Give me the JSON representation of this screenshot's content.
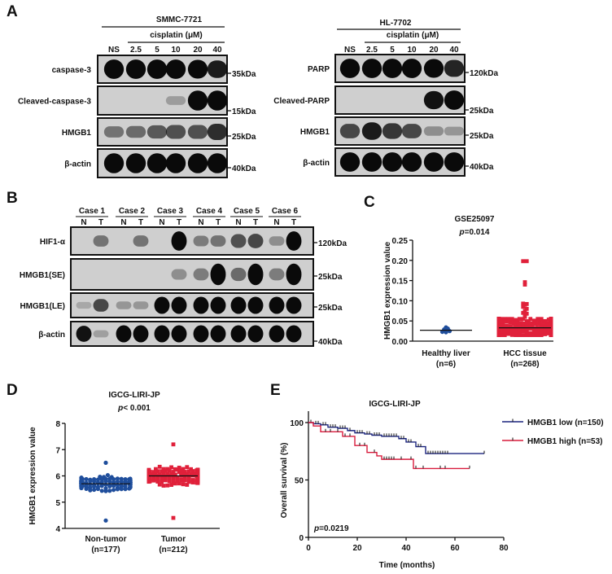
{
  "panels": {
    "A": {
      "label": "A",
      "left": {
        "cell_line": "SMMC-7721",
        "treatment": "cisplatin (μM)",
        "lanes": [
          "NS",
          "2.5",
          "5",
          "10",
          "20",
          "40"
        ],
        "rows": [
          {
            "name": "caspase-3",
            "marker": "35kDa",
            "bands": [
              1,
              1,
              1,
              1,
              0.95,
              0.85
            ]
          },
          {
            "name": "Cleaved-caspase-3",
            "marker": "15kDa",
            "bands": [
              0,
              0,
              0,
              0.12,
              1,
              1
            ]
          },
          {
            "name": "HMGB1",
            "marker": "25kDa",
            "bands": [
              0.35,
              0.4,
              0.5,
              0.55,
              0.55,
              0.75
            ]
          },
          {
            "name": "β-actin",
            "marker": "40kDa",
            "bands": [
              1,
              1,
              1,
              1,
              1,
              1
            ]
          }
        ]
      },
      "right": {
        "cell_line": "HL-7702",
        "treatment": "cisplatin (μM)",
        "lanes": [
          "NS",
          "2.5",
          "5",
          "10",
          "20",
          "40"
        ],
        "rows": [
          {
            "name": "PARP",
            "marker": "120kDa",
            "bands": [
              1,
              1,
              1,
              1,
              0.95,
              0.8
            ]
          },
          {
            "name": "Cleaved-PARP",
            "marker": "25kDa",
            "bands": [
              0,
              0,
              0,
              0,
              0.9,
              1
            ]
          },
          {
            "name": "HMGB1",
            "marker": "25kDa",
            "bands": [
              0.6,
              0.85,
              0.7,
              0.6,
              0.2,
              0.15
            ]
          },
          {
            "name": "β-actin",
            "marker": "40kDa",
            "bands": [
              1,
              1,
              1,
              1,
              1,
              1
            ]
          }
        ]
      }
    },
    "B": {
      "label": "B",
      "cases": [
        "Case 1",
        "Case 2",
        "Case 3",
        "Case 4",
        "Case 5",
        "Case 6"
      ],
      "lane_types": [
        "N",
        "T"
      ],
      "rows": [
        {
          "name": "HIF1-α",
          "marker": "120kDa",
          "bands": [
            0,
            0.35,
            0,
            0.35,
            0,
            1,
            0.3,
            0.35,
            0.55,
            0.6,
            0.2,
            1
          ]
        },
        {
          "name": "HMGB1(SE)",
          "marker": "25kDa",
          "bands": [
            0,
            0,
            0,
            0,
            0,
            0.2,
            0.3,
            1,
            0.4,
            1,
            0.3,
            1
          ]
        },
        {
          "name": "HMGB1(LE)",
          "marker": "25kDa",
          "bands": [
            0.05,
            0.6,
            0.15,
            0.15,
            1,
            1,
            1,
            1,
            1,
            1,
            1,
            1
          ]
        },
        {
          "name": "β-actin",
          "marker": "40kDa",
          "bands": [
            0.9,
            0.1,
            1,
            1,
            1,
            1,
            1,
            1,
            1,
            1,
            1,
            1
          ]
        }
      ]
    },
    "C": {
      "label": "C",
      "chart_data": {
        "type": "scatter",
        "title": "GSE25097",
        "subtitle": "p=0.014",
        "subtitle_italic": "p",
        "subtitle_rest": "=0.014",
        "ylabel": "HMGB1 expression value",
        "ylim": [
          0,
          0.25
        ],
        "yticks": [
          "0.00",
          "0.05",
          "0.10",
          "0.15",
          "0.20",
          "0.25"
        ],
        "groups": [
          {
            "name": "Healthy liver",
            "n_label": "(n=6)",
            "color": "#1f4e9c",
            "marker": "circle",
            "n": 6,
            "mean": 0.027,
            "range": [
              0.022,
              0.034
            ],
            "values": [
              0.029,
              0.023,
              0.022,
              0.025,
              0.031,
              0.034
            ]
          },
          {
            "name": "HCC tissue",
            "n_label": "(n=268)",
            "color": "#e0203a",
            "marker": "square",
            "n": 268,
            "mean": 0.033,
            "range": [
              0.015,
              0.198
            ],
            "outliers": [
              0.198,
              0.146,
              0.14,
              0.093,
              0.092,
              0.09,
              0.085,
              0.08,
              0.075,
              0.07,
              0.068,
              0.065,
              0.06
            ]
          }
        ]
      }
    },
    "D": {
      "label": "D",
      "chart_data": {
        "type": "scatter",
        "title": "IGCG-LIRI-JP",
        "subtitle_italic": "p",
        "subtitle_rest": "< 0.001",
        "ylabel": "HMGB1 expression value",
        "ylim": [
          4,
          8
        ],
        "yticks": [
          "4",
          "5",
          "6",
          "7",
          "8"
        ],
        "groups": [
          {
            "name": "Non-tumor",
            "n_label": "(n=177)",
            "color": "#1f4e9c",
            "marker": "circle",
            "n": 177,
            "mean": 5.7,
            "range": [
              4.3,
              6.5
            ]
          },
          {
            "name": "Tumor",
            "n_label": "(n=212)",
            "color": "#e0203a",
            "marker": "square",
            "n": 212,
            "mean": 6.0,
            "range": [
              4.4,
              7.2
            ]
          }
        ]
      }
    },
    "E": {
      "label": "E",
      "chart_data": {
        "type": "line",
        "title": "IGCG-LIRI-JP",
        "xlabel": "Time (months)",
        "ylabel": "Overall survival (%)",
        "xlim": [
          0,
          80
        ],
        "ylim": [
          0,
          100
        ],
        "xticks": [
          "0",
          "20",
          "40",
          "60",
          "80"
        ],
        "yticks": [
          "0",
          "50",
          "100"
        ],
        "annotation_italic": "p",
        "annotation_rest": "=0.0219",
        "legend_position": "right",
        "series": [
          {
            "name": "HMGB1 low (n=150)",
            "color": "#1a237e",
            "steps": [
              [
                0,
                100
              ],
              [
                2,
                99
              ],
              [
                5,
                98
              ],
              [
                8,
                96
              ],
              [
                12,
                95
              ],
              [
                16,
                93
              ],
              [
                19,
                91
              ],
              [
                23,
                90
              ],
              [
                26,
                89
              ],
              [
                30,
                88
              ],
              [
                37,
                86
              ],
              [
                40,
                83
              ],
              [
                44,
                79
              ],
              [
                48,
                73
              ],
              [
                72,
                73
              ]
            ],
            "censored": [
              1,
              3,
              4,
              6,
              7,
              9,
              10,
              11,
              13,
              14,
              15,
              17,
              20,
              21,
              22,
              24,
              25,
              27,
              28,
              29,
              31,
              32,
              33,
              34,
              35,
              36,
              38,
              39,
              41,
              42,
              45,
              46,
              49,
              50,
              51,
              52,
              53,
              54,
              55,
              56,
              57,
              72
            ]
          },
          {
            "name": "HMGB1 high (n=53)",
            "color": "#d81b3c",
            "steps": [
              [
                0,
                100
              ],
              [
                2,
                97
              ],
              [
                5,
                92
              ],
              [
                14,
                88
              ],
              [
                19,
                80
              ],
              [
                24,
                74
              ],
              [
                28,
                71
              ],
              [
                30,
                68
              ],
              [
                43,
                60
              ],
              [
                66,
                60
              ]
            ],
            "censored": [
              7,
              9,
              12,
              15,
              17,
              21,
              23,
              27,
              31,
              32,
              33,
              34,
              35,
              38,
              42,
              44,
              47,
              54,
              56,
              66
            ]
          }
        ]
      }
    }
  }
}
